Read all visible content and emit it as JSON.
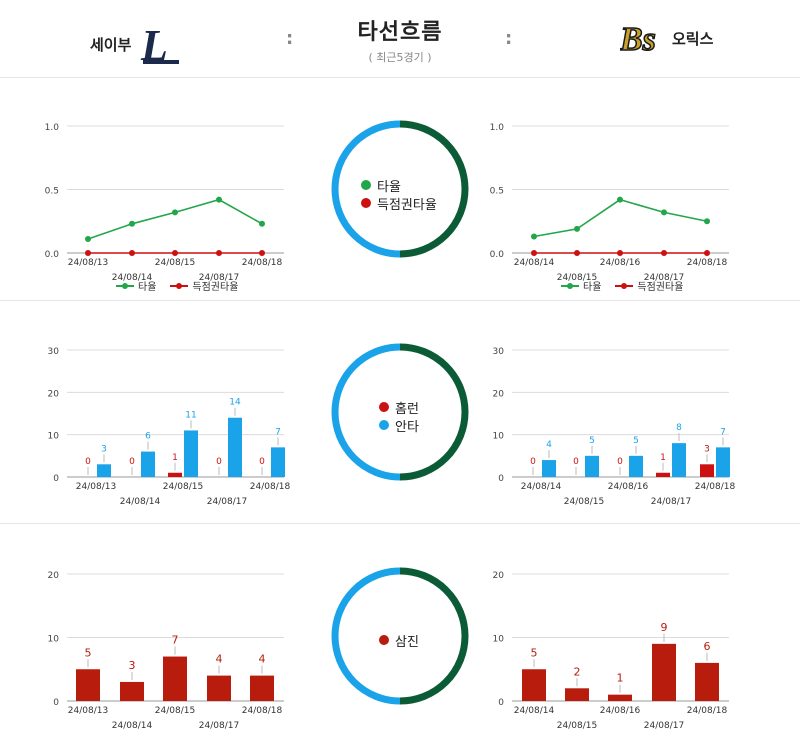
{
  "header": {
    "title": "타선흐름",
    "subtitle": "( 최근5경기 )",
    "separator": ":",
    "left_team": {
      "name": "세이부",
      "logo_text": "L"
    },
    "right_team": {
      "name": "오릭스",
      "logo_text": "Bs"
    }
  },
  "colors": {
    "green": "#22a64a",
    "red": "#cc1111",
    "blue": "#1aa3e8",
    "dark_red": "#b71c0c",
    "ring_blue": "#1aa3e8",
    "ring_green": "#0b5b36"
  },
  "ring_legends": {
    "avg": [
      {
        "label": "타율",
        "color": "#22a64a"
      },
      {
        "label": "득점권타율",
        "color": "#cc1111"
      }
    ],
    "hits": [
      {
        "label": "홈런",
        "color": "#cc1111"
      },
      {
        "label": "안타",
        "color": "#1aa3e8"
      }
    ],
    "so": [
      {
        "label": "삼진",
        "color": "#b71c0c"
      }
    ]
  },
  "line_legend": {
    "avg": "타율",
    "risp": "득점권타율"
  },
  "chart_data": [
    {
      "id": "left-avg",
      "type": "line",
      "categories": [
        "24/08/13",
        "24/08/14",
        "24/08/15",
        "24/08/17",
        "24/08/18"
      ],
      "ylim": [
        0,
        1.0
      ],
      "yticks": [
        "0.0",
        "0.5",
        "1.0"
      ],
      "series": [
        {
          "name": "타율",
          "values": [
            0.11,
            0.23,
            0.32,
            0.42,
            0.23
          ]
        },
        {
          "name": "득점권타율",
          "values": [
            0.0,
            0.0,
            0.0,
            0.0,
            0.0
          ]
        }
      ]
    },
    {
      "id": "right-avg",
      "type": "line",
      "categories": [
        "24/08/14",
        "24/08/15",
        "24/08/16",
        "24/08/17",
        "24/08/18"
      ],
      "ylim": [
        0,
        1.0
      ],
      "yticks": [
        "0.0",
        "0.5",
        "1.0"
      ],
      "series": [
        {
          "name": "타율",
          "values": [
            0.13,
            0.19,
            0.42,
            0.32,
            0.25
          ]
        },
        {
          "name": "득점권타율",
          "values": [
            0.0,
            0.0,
            0.0,
            0.0,
            0.0
          ]
        }
      ]
    },
    {
      "id": "left-hits",
      "type": "bar",
      "categories": [
        "24/08/13",
        "24/08/14",
        "24/08/15",
        "24/08/17",
        "24/08/18"
      ],
      "ylim": [
        0,
        30
      ],
      "yticks": [
        "0",
        "10",
        "20",
        "30"
      ],
      "series": [
        {
          "name": "홈런",
          "values": [
            0,
            0,
            1,
            0,
            0
          ]
        },
        {
          "name": "안타",
          "values": [
            3,
            6,
            11,
            14,
            7
          ]
        }
      ]
    },
    {
      "id": "right-hits",
      "type": "bar",
      "categories": [
        "24/08/14",
        "24/08/15",
        "24/08/16",
        "24/08/17",
        "24/08/18"
      ],
      "ylim": [
        0,
        30
      ],
      "yticks": [
        "0",
        "10",
        "20",
        "30"
      ],
      "series": [
        {
          "name": "홈런",
          "values": [
            0,
            0,
            0,
            1,
            3
          ]
        },
        {
          "name": "안타",
          "values": [
            4,
            5,
            5,
            8,
            7
          ]
        }
      ]
    },
    {
      "id": "left-so",
      "type": "bar",
      "categories": [
        "24/08/13",
        "24/08/14",
        "24/08/15",
        "24/08/17",
        "24/08/18"
      ],
      "ylim": [
        0,
        20
      ],
      "yticks": [
        "0",
        "10",
        "20"
      ],
      "series": [
        {
          "name": "삼진",
          "values": [
            5,
            3,
            7,
            4,
            4
          ]
        }
      ]
    },
    {
      "id": "right-so",
      "type": "bar",
      "categories": [
        "24/08/14",
        "24/08/15",
        "24/08/16",
        "24/08/17",
        "24/08/18"
      ],
      "ylim": [
        0,
        20
      ],
      "yticks": [
        "0",
        "10",
        "20"
      ],
      "series": [
        {
          "name": "삼진",
          "values": [
            5,
            2,
            1,
            9,
            6
          ]
        }
      ]
    }
  ]
}
